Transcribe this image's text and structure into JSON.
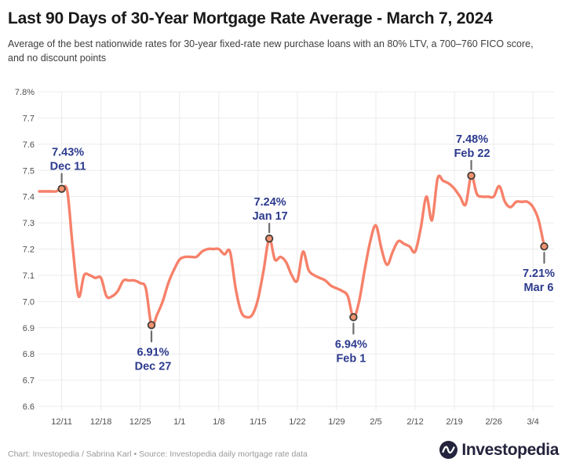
{
  "header": {
    "title": "Last 90 Days of 30-Year Mortgage Rate Average - March 7, 2024",
    "subtitle": "Average of the best nationwide rates for 30-year fixed-rate new purchase loans with an 80% LTV, a 700–760 FICO score, and no discount points"
  },
  "footer": {
    "credit": "Chart: Investopedia / Sabrina Karl • Source: Investopedia daily mortgage rate data",
    "logo_text": "Investopedia"
  },
  "colors": {
    "line": "#f6816a",
    "marker_fill": "#ef926f",
    "marker_stroke": "#443d38",
    "annotation_text": "#2c3a8e",
    "leader_line": "#6e6e6e",
    "grid": "#ebebeb",
    "logo_navy": "#23233d"
  },
  "chart_data": {
    "type": "line",
    "title": "Last 90 Days of 30-Year Mortgage Rate Average - March 7, 2024",
    "xlabel": "",
    "ylabel": "",
    "ylim": [
      6.6,
      7.8
    ],
    "grid": true,
    "dates": [
      "12/7",
      "12/8",
      "12/9",
      "12/10",
      "12/11",
      "12/12",
      "12/13",
      "12/14",
      "12/15",
      "12/16",
      "12/17",
      "12/18",
      "12/19",
      "12/20",
      "12/21",
      "12/22",
      "12/23",
      "12/24",
      "12/25",
      "12/26",
      "12/27",
      "12/28",
      "12/29",
      "12/30",
      "12/31",
      "1/1",
      "1/2",
      "1/3",
      "1/4",
      "1/5",
      "1/6",
      "1/7",
      "1/8",
      "1/9",
      "1/10",
      "1/11",
      "1/12",
      "1/13",
      "1/14",
      "1/15",
      "1/16",
      "1/17",
      "1/18",
      "1/19",
      "1/20",
      "1/21",
      "1/22",
      "1/23",
      "1/24",
      "1/25",
      "1/26",
      "1/27",
      "1/28",
      "1/29",
      "1/30",
      "1/31",
      "2/1",
      "2/2",
      "2/3",
      "2/4",
      "2/5",
      "2/6",
      "2/7",
      "2/8",
      "2/9",
      "2/10",
      "2/11",
      "2/12",
      "2/13",
      "2/14",
      "2/15",
      "2/16",
      "2/17",
      "2/18",
      "2/19",
      "2/20",
      "2/21",
      "2/22",
      "2/23",
      "2/24",
      "2/25",
      "2/26",
      "2/27",
      "2/28",
      "2/29",
      "3/1",
      "3/2",
      "3/3",
      "3/4",
      "3/5",
      "3/6"
    ],
    "values": [
      7.42,
      7.42,
      7.42,
      7.42,
      7.43,
      7.42,
      7.2,
      7.02,
      7.1,
      7.1,
      7.09,
      7.09,
      7.02,
      7.02,
      7.04,
      7.08,
      7.08,
      7.08,
      7.07,
      7.05,
      6.91,
      6.95,
      7.0,
      7.07,
      7.12,
      7.16,
      7.17,
      7.17,
      7.17,
      7.19,
      7.2,
      7.2,
      7.2,
      7.18,
      7.19,
      7.05,
      6.96,
      6.94,
      6.95,
      7.01,
      7.12,
      7.24,
      7.16,
      7.17,
      7.15,
      7.1,
      7.08,
      7.19,
      7.12,
      7.1,
      7.09,
      7.08,
      7.06,
      7.05,
      7.04,
      7.02,
      6.94,
      7.0,
      7.12,
      7.23,
      7.29,
      7.2,
      7.14,
      7.19,
      7.23,
      7.22,
      7.21,
      7.19,
      7.28,
      7.4,
      7.31,
      7.47,
      7.46,
      7.45,
      7.43,
      7.4,
      7.37,
      7.48,
      7.41,
      7.4,
      7.4,
      7.4,
      7.44,
      7.38,
      7.36,
      7.38,
      7.38,
      7.38,
      7.36,
      7.31,
      7.21
    ],
    "y_ticks": [
      {
        "value": 7.8,
        "label": "7.8%"
      },
      {
        "value": 7.7,
        "label": "7.7"
      },
      {
        "value": 7.6,
        "label": "7.6"
      },
      {
        "value": 7.5,
        "label": "7.5"
      },
      {
        "value": 7.4,
        "label": "7.4"
      },
      {
        "value": 7.3,
        "label": "7.3"
      },
      {
        "value": 7.2,
        "label": "7.2"
      },
      {
        "value": 7.1,
        "label": "7.1"
      },
      {
        "value": 7.0,
        "label": "7.0"
      },
      {
        "value": 6.9,
        "label": "6.9"
      },
      {
        "value": 6.8,
        "label": "6.8"
      },
      {
        "value": 6.7,
        "label": "6.7"
      },
      {
        "value": 6.6,
        "label": "6.6"
      }
    ],
    "x_ticks": [
      {
        "index": 4,
        "label": "12/11"
      },
      {
        "index": 11,
        "label": "12/18"
      },
      {
        "index": 18,
        "label": "12/25"
      },
      {
        "index": 25,
        "label": "1/1"
      },
      {
        "index": 32,
        "label": "1/8"
      },
      {
        "index": 39,
        "label": "1/15"
      },
      {
        "index": 46,
        "label": "1/22"
      },
      {
        "index": 53,
        "label": "1/29"
      },
      {
        "index": 60,
        "label": "2/5"
      },
      {
        "index": 67,
        "label": "2/12"
      },
      {
        "index": 74,
        "label": "2/19"
      },
      {
        "index": 81,
        "label": "2/26"
      },
      {
        "index": 88,
        "label": "3/4"
      }
    ],
    "annotations": [
      {
        "index": 4,
        "rate": "7.43%",
        "date": "Dec 11",
        "placement": "above",
        "dx": 8
      },
      {
        "index": 20,
        "rate": "6.91%",
        "date": "Dec 27",
        "placement": "below",
        "dx": 2
      },
      {
        "index": 41,
        "rate": "7.24%",
        "date": "Jan 17",
        "placement": "above",
        "dx": 1
      },
      {
        "index": 56,
        "rate": "6.94%",
        "date": "Feb 1",
        "placement": "below",
        "dx": -3
      },
      {
        "index": 77,
        "rate": "7.48%",
        "date": "Feb 22",
        "placement": "above",
        "dx": 1
      },
      {
        "index": 90,
        "rate": "7.21%",
        "date": "Mar 6",
        "placement": "below",
        "dx": -7
      }
    ]
  }
}
